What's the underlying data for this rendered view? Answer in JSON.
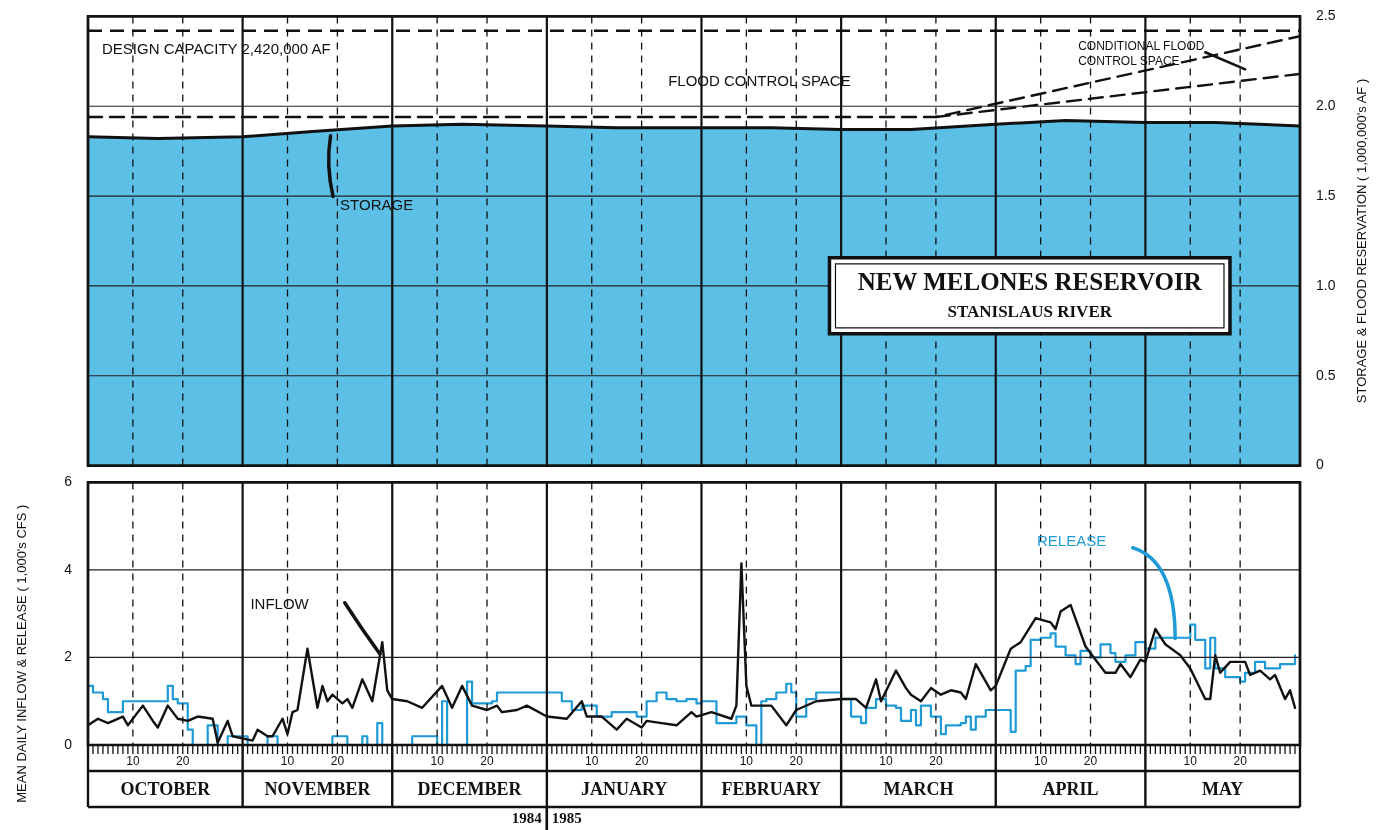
{
  "chart_data": [
    {
      "type": "area",
      "title": "NEW MELONES RESERVOIR",
      "subtitle": "STANISLAUS RIVER",
      "ylabel": "STORAGE & FLOOD RESERVATION ( 1,000,000's AF )",
      "x": [
        "1984-10-01",
        "1984-10-15",
        "1984-11-01",
        "1984-11-15",
        "1984-12-01",
        "1984-12-15",
        "1985-01-01",
        "1985-01-15",
        "1985-02-01",
        "1985-02-15",
        "1985-03-01",
        "1985-03-15",
        "1985-04-01",
        "1985-04-15",
        "1985-05-01",
        "1985-05-15",
        "1985-06-01"
      ],
      "series": [
        {
          "name": "STORAGE",
          "color": "#5bbfe6",
          "values": [
            1.83,
            1.82,
            1.83,
            1.86,
            1.89,
            1.9,
            1.89,
            1.88,
            1.88,
            1.88,
            1.87,
            1.87,
            1.9,
            1.92,
            1.91,
            1.91,
            1.89
          ]
        },
        {
          "type": "line",
          "color": "#111111",
          "line_style": "dashed",
          "x": [
            "1984-10-01",
            "1985-03-20",
            "1985-06-01"
          ],
          "values": [
            1.94,
            1.94,
            2.39
          ]
        },
        {
          "type": "line",
          "color": "#111111",
          "line_style": "dashed",
          "x": [
            "1985-03-20",
            "1985-06-01"
          ],
          "values": [
            1.94,
            2.18
          ]
        }
      ],
      "ref_lines": [
        {
          "axis": "y",
          "value": 2.42,
          "label": "DESIGN CAPACITY 2,420,000 AF",
          "color": "#111111",
          "line_style": "dashed"
        }
      ],
      "annotations": [
        "FLOOD CONTROL SPACE",
        "CONDITIONAL FLOOD CONTROL SPACE"
      ],
      "xlim": [
        "1984-10-01",
        "1985-06-01"
      ],
      "xticks": [
        {
          "value": "1984-10-01",
          "label": null
        },
        {
          "value": "1984-10-10",
          "label": null
        },
        {
          "value": "1984-10-20",
          "label": null
        },
        {
          "value": "1984-11-01",
          "label": null
        },
        {
          "value": "1984-11-10",
          "label": null
        },
        {
          "value": "1984-11-20",
          "label": null
        },
        {
          "value": "1984-12-01",
          "label": null
        },
        {
          "value": "1984-12-10",
          "label": null
        },
        {
          "value": "1984-12-20",
          "label": null
        },
        {
          "value": "1985-01-01",
          "label": null
        },
        {
          "value": "1985-01-10",
          "label": null
        },
        {
          "value": "1985-01-20",
          "label": null
        },
        {
          "value": "1985-02-01",
          "label": null
        },
        {
          "value": "1985-02-10",
          "label": null
        },
        {
          "value": "1985-02-20",
          "label": null
        },
        {
          "value": "1985-03-01",
          "label": null
        },
        {
          "value": "1985-03-10",
          "label": null
        },
        {
          "value": "1985-03-20",
          "label": null
        },
        {
          "value": "1985-04-01",
          "label": null
        },
        {
          "value": "1985-04-10",
          "label": null
        },
        {
          "value": "1985-04-20",
          "label": null
        },
        {
          "value": "1985-05-01",
          "label": null
        },
        {
          "value": "1985-05-10",
          "label": null
        },
        {
          "value": "1985-05-20",
          "label": null
        },
        {
          "value": "1985-06-01",
          "label": null
        }
      ],
      "ylim": [
        0,
        2.5
      ],
      "yticks": [
        0,
        0.5,
        {
          "value": 1,
          "label": "1.0"
        },
        1.5,
        {
          "value": 2,
          "label": "2.0"
        },
        2.5
      ],
      "grid": true,
      "tick_labels": "y"
    },
    {
      "type": "line",
      "ylabel": "MEAN DAILY INFLOW & RELEASE ( 1,000's CFS )",
      "series": [
        {
          "name": "INFLOW",
          "color": "#111111",
          "x": [
            "1984-10-01",
            "1984-10-03",
            "1984-10-05",
            "1984-10-08",
            "1984-10-09",
            "1984-10-12",
            "1984-10-14",
            "1984-10-15",
            "1984-10-17",
            "1984-10-19",
            "1984-10-21",
            "1984-10-23",
            "1984-10-26",
            "1984-10-27",
            "1984-10-29",
            "1984-10-30",
            "1984-11-01",
            "1984-11-03",
            "1984-11-04",
            "1984-11-06",
            "1984-11-07",
            "1984-11-09",
            "1984-11-10",
            "1984-11-11",
            "1984-11-12",
            "1984-11-14",
            "1984-11-16",
            "1984-11-17",
            "1984-11-18",
            "1984-11-19",
            "1984-11-21",
            "1984-11-22",
            "1984-11-23",
            "1984-11-25",
            "1984-11-27",
            "1984-11-29",
            "1984-11-30",
            "1984-12-01",
            "1984-12-04",
            "1984-12-07",
            "1984-12-11",
            "1984-12-13",
            "1984-12-15",
            "1984-12-17",
            "1984-12-20",
            "1984-12-22",
            "1984-12-23",
            "1984-12-26",
            "1984-12-28",
            "1985-01-01",
            "1985-01-05",
            "1985-01-08",
            "1985-01-09",
            "1985-01-12",
            "1985-01-15",
            "1985-01-17",
            "1985-01-20",
            "1985-01-21",
            "1985-01-24",
            "1985-01-27",
            "1985-01-30",
            "1985-01-31",
            "1985-02-03",
            "1985-02-07",
            "1985-02-08",
            "1985-02-09",
            "1985-02-10",
            "1985-02-11",
            "1985-02-15",
            "1985-02-18",
            "1985-02-20",
            "1985-02-24",
            "1985-03-01",
            "1985-03-04",
            "1985-03-06",
            "1985-03-08",
            "1985-03-09",
            "1985-03-12",
            "1985-03-14",
            "1985-03-15",
            "1985-03-17",
            "1985-03-19",
            "1985-03-21",
            "1985-03-23",
            "1985-03-25",
            "1985-03-26",
            "1985-03-28",
            "1985-03-29",
            "1985-03-31",
            "1985-04-01",
            "1985-04-04",
            "1985-04-06",
            "1985-04-09",
            "1985-04-12",
            "1985-04-13",
            "1985-04-14",
            "1985-04-16",
            "1985-04-19",
            "1985-04-21",
            "1985-04-23",
            "1985-04-25",
            "1985-04-26",
            "1985-04-28",
            "1985-04-30",
            "1985-05-01",
            "1985-05-03",
            "1985-05-05",
            "1985-05-08",
            "1985-05-10",
            "1985-05-13",
            "1985-05-14",
            "1985-05-15",
            "1985-05-16",
            "1985-05-18",
            "1985-05-21",
            "1985-05-22",
            "1985-05-24",
            "1985-05-26",
            "1985-05-27",
            "1985-05-29",
            "1985-05-30",
            "1985-05-31"
          ],
          "values": [
            0.45,
            0.6,
            0.5,
            0.65,
            0.45,
            0.9,
            0.55,
            0.4,
            0.9,
            0.6,
            0.55,
            0.65,
            0.6,
            0.05,
            0.55,
            0.2,
            0.15,
            0.1,
            0.35,
            0.2,
            0.2,
            0.6,
            0.25,
            0.75,
            0.8,
            2.2,
            0.85,
            1.35,
            1.0,
            1.15,
            0.95,
            1.05,
            0.85,
            1.5,
            1.0,
            2.35,
            1.25,
            1.05,
            1.0,
            0.85,
            1.35,
            0.85,
            1.35,
            0.9,
            0.8,
            0.9,
            0.75,
            0.8,
            0.9,
            0.65,
            0.6,
            1.0,
            0.65,
            0.65,
            0.35,
            0.6,
            0.4,
            0.55,
            0.5,
            0.45,
            0.75,
            0.65,
            0.75,
            0.6,
            0.9,
            4.15,
            1.35,
            0.9,
            0.9,
            0.45,
            0.8,
            1.0,
            1.05,
            1.05,
            0.85,
            1.5,
            1.0,
            1.7,
            1.3,
            1.15,
            1.0,
            1.3,
            1.15,
            1.25,
            1.2,
            1.05,
            1.85,
            1.65,
            1.25,
            1.35,
            2.2,
            2.35,
            2.9,
            2.8,
            2.65,
            3.05,
            3.2,
            2.25,
            1.95,
            1.65,
            1.65,
            1.85,
            1.55,
            1.95,
            1.9,
            2.65,
            2.3,
            2.05,
            1.75,
            1.05,
            1.05,
            2.05,
            1.65,
            1.9,
            1.9,
            1.6,
            1.7,
            1.5,
            1.6,
            1.05,
            1.25,
            0.85
          ]
        },
        {
          "name": "RELEASE",
          "type": "step",
          "color": "#1e9bd7",
          "x": [
            "1984-10-01",
            "1984-10-02",
            "1984-10-04",
            "1984-10-05",
            "1984-10-08",
            "1984-10-17",
            "1984-10-18",
            "1984-10-19",
            "1984-10-21",
            "1984-10-22",
            "1984-10-25",
            "1984-10-27",
            "1984-10-29",
            "1984-11-02",
            "1984-11-06",
            "1984-11-08",
            "1984-11-19",
            "1984-11-22",
            "1984-11-25",
            "1984-11-26",
            "1984-11-28",
            "1984-11-29",
            "1984-12-05",
            "1984-12-10",
            "1984-12-11",
            "1984-12-12",
            "1984-12-16",
            "1984-12-17",
            "1984-12-21",
            "1984-12-22",
            "1985-01-04",
            "1985-01-06",
            "1985-01-08",
            "1985-01-11",
            "1985-01-14",
            "1985-01-19",
            "1985-01-21",
            "1985-01-23",
            "1985-01-25",
            "1985-01-27",
            "1985-01-29",
            "1985-01-31",
            "1985-02-01",
            "1985-02-04",
            "1985-02-08",
            "1985-02-10",
            "1985-02-12",
            "1985-02-13",
            "1985-02-14",
            "1985-02-16",
            "1985-02-18",
            "1985-02-19",
            "1985-02-20",
            "1985-02-22",
            "1985-02-24",
            "1985-03-01",
            "1985-03-03",
            "1985-03-05",
            "1985-03-06",
            "1985-03-08",
            "1985-03-10",
            "1985-03-12",
            "1985-03-13",
            "1985-03-15",
            "1985-03-16",
            "1985-03-17",
            "1985-03-19",
            "1985-03-21",
            "1985-03-22",
            "1985-03-25",
            "1985-03-26",
            "1985-03-27",
            "1985-03-28",
            "1985-03-30",
            "1985-04-04",
            "1985-04-05",
            "1985-04-07",
            "1985-04-08",
            "1985-04-10",
            "1985-04-12",
            "1985-04-13",
            "1985-04-15",
            "1985-04-17",
            "1985-04-18",
            "1985-04-20",
            "1985-04-22",
            "1985-04-24",
            "1985-04-25",
            "1985-04-27",
            "1985-04-29",
            "1985-05-01",
            "1985-05-03",
            "1985-05-10",
            "1985-05-11",
            "1985-05-13",
            "1985-05-14",
            "1985-05-15",
            "1985-05-17",
            "1985-05-20",
            "1985-05-21",
            "1985-05-23",
            "1985-05-25",
            "1985-05-28",
            "1985-05-31"
          ],
          "values": [
            1.35,
            1.2,
            1.05,
            0.75,
            1.0,
            1.35,
            1.05,
            0.95,
            0.35,
            0,
            0.45,
            0,
            0.2,
            0,
            0.2,
            0,
            0.2,
            0,
            0.2,
            0,
            0.5,
            0,
            0.2,
            0,
            1.0,
            0,
            1.45,
            0.95,
            1.0,
            1.2,
            1.0,
            0.8,
            0.9,
            0.65,
            0.75,
            0.65,
            1.0,
            1.2,
            1.05,
            1.0,
            1.05,
            0.95,
            1.0,
            0.5,
            0.65,
            0.45,
            0,
            1.0,
            1.05,
            1.2,
            1.4,
            1.2,
            0.65,
            1.05,
            1.2,
            1.05,
            0.65,
            0.5,
            0.85,
            1.05,
            0.9,
            0.85,
            0.55,
            0.8,
            0.45,
            0.9,
            0.65,
            0.25,
            0.45,
            0.5,
            0.65,
            0.35,
            0.65,
            0.8,
            0.3,
            1.7,
            1.8,
            2.4,
            2.45,
            2.55,
            2.25,
            2.05,
            1.85,
            2.15,
            2.0,
            2.3,
            2.1,
            1.9,
            2.05,
            2.35,
            2.2,
            2.45,
            2.75,
            2.4,
            1.75,
            2.45,
            1.75,
            1.55,
            1.45,
            1.65,
            1.9,
            1.75,
            1.85,
            2.05
          ]
        }
      ],
      "annotations": [
        "OCTOBER",
        "NOVEMBER",
        "DECEMBER",
        "JANUARY",
        "FEBRUARY",
        "MARCH",
        "APRIL",
        "MAY",
        "1984",
        "1985"
      ],
      "xlim": [
        "1984-10-01",
        "1985-06-01"
      ],
      "xticks": [
        {
          "value": "1984-10-01",
          "label": null
        },
        {
          "value": "1984-10-10",
          "label": "10"
        },
        {
          "value": "1984-10-20",
          "label": "20"
        },
        {
          "value": "1984-11-01",
          "label": null
        },
        {
          "value": "1984-11-10",
          "label": "10"
        },
        {
          "value": "1984-11-20",
          "label": "20"
        },
        {
          "value": "1984-12-01",
          "label": null
        },
        {
          "value": "1984-12-10",
          "label": "10"
        },
        {
          "value": "1984-12-20",
          "label": "20"
        },
        {
          "value": "1985-01-01",
          "label": null
        },
        {
          "value": "1985-01-10",
          "label": "10"
        },
        {
          "value": "1985-01-20",
          "label": "20"
        },
        {
          "value": "1985-02-01",
          "label": null
        },
        {
          "value": "1985-02-10",
          "label": "10"
        },
        {
          "value": "1985-02-20",
          "label": "20"
        },
        {
          "value": "1985-03-01",
          "label": null
        },
        {
          "value": "1985-03-10",
          "label": "10"
        },
        {
          "value": "1985-03-20",
          "label": "20"
        },
        {
          "value": "1985-04-01",
          "label": null
        },
        {
          "value": "1985-04-10",
          "label": "10"
        },
        {
          "value": "1985-04-20",
          "label": "20"
        },
        {
          "value": "1985-05-01",
          "label": null
        },
        {
          "value": "1985-05-10",
          "label": "10"
        },
        {
          "value": "1985-05-20",
          "label": "20"
        },
        {
          "value": "1985-06-01",
          "label": null
        }
      ],
      "ylim": [
        0,
        6
      ],
      "yticks": [
        0,
        2,
        4,
        6
      ],
      "grid": true
    }
  ]
}
